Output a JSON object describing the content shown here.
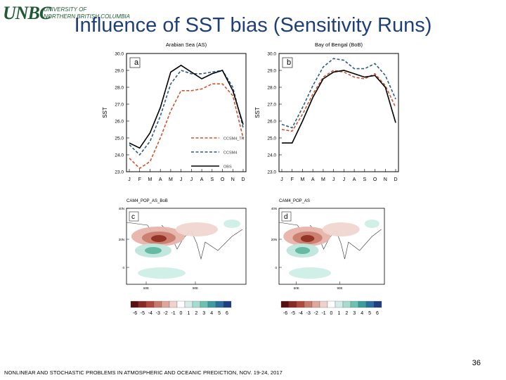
{
  "logo": {
    "mark": "UNBC",
    "line1": "UNIVERSITY OF",
    "line2": "NORTHERN BRITISH COLUMBIA"
  },
  "title": "Influence of SST bias (Sensitivity Runs)",
  "page_number": "36",
  "footer": "NONLINEAR AND STOCHASTIC PROBLEMS IN ATMOSPHERIC AND OCEANIC PREDICTION, NOV. 19-24, 2017",
  "chart_data": [
    {
      "type": "line",
      "panel": "a",
      "title": "Arabian Sea (AS)",
      "ylabel": "SST",
      "categories": [
        "J",
        "F",
        "M",
        "A",
        "M",
        "J",
        "J",
        "A",
        "S",
        "O",
        "N",
        "D"
      ],
      "yticks": [
        "23.0",
        "24.0",
        "25.0",
        "26.0",
        "27.0",
        "28.0",
        "29.0",
        "30.0"
      ],
      "ylim": [
        23,
        30
      ],
      "legend_position": "bottom-right",
      "series": [
        {
          "name": "CCSM4_TR",
          "color": "#d0532a",
          "dash": true,
          "values": [
            23.8,
            23.2,
            23.6,
            25.0,
            26.6,
            27.8,
            27.8,
            27.9,
            28.2,
            28.2,
            27.5,
            25.0
          ]
        },
        {
          "name": "CCSM4",
          "color": "#2c5a8c",
          "dash": true,
          "values": [
            24.6,
            24.0,
            24.8,
            26.3,
            28.2,
            29.0,
            28.8,
            28.8,
            28.9,
            29.0,
            28.0,
            25.6
          ]
        },
        {
          "name": "OBS",
          "color": "#000000",
          "dash": false,
          "values": [
            24.7,
            24.4,
            25.3,
            26.8,
            28.9,
            29.3,
            28.9,
            28.5,
            28.8,
            29.0,
            27.8,
            25.8
          ]
        }
      ]
    },
    {
      "type": "line",
      "panel": "b",
      "title": "Bay of Bengal (BoB)",
      "ylabel": "SST",
      "categories": [
        "J",
        "F",
        "M",
        "A",
        "M",
        "J",
        "J",
        "A",
        "S",
        "O",
        "N",
        "D"
      ],
      "yticks": [
        "23.0",
        "24.0",
        "25.0",
        "26.0",
        "27.0",
        "28.0",
        "29.0",
        "30.0"
      ],
      "ylim": [
        23,
        30
      ],
      "series": [
        {
          "name": "CCSM4_TR",
          "color": "#d0532a",
          "dash": true,
          "values": [
            25.5,
            25.4,
            26.4,
            27.6,
            28.6,
            29.0,
            28.9,
            28.6,
            28.5,
            28.8,
            28.1,
            26.8
          ]
        },
        {
          "name": "CCSM4",
          "color": "#2c5a8c",
          "dash": true,
          "values": [
            25.8,
            25.6,
            26.8,
            28.1,
            29.2,
            29.7,
            29.6,
            29.1,
            29.1,
            29.4,
            28.7,
            27.3
          ]
        },
        {
          "name": "OBS",
          "color": "#000000",
          "dash": false,
          "values": [
            24.7,
            24.7,
            26.0,
            27.4,
            28.5,
            28.9,
            29.0,
            28.8,
            28.6,
            28.7,
            28.0,
            25.9
          ]
        }
      ]
    },
    {
      "type": "heatmap",
      "panel": "c",
      "title": "CAM4_POP_AS_BoB",
      "lat_ticks": [
        "40N",
        "20N",
        "0"
      ],
      "lon_ticks": [
        "60E",
        "90E"
      ],
      "colorbar": {
        "labels": [
          "-6",
          "-5",
          "-4",
          "-3",
          "-2",
          "-1",
          "0",
          "1",
          "2",
          "3",
          "4",
          "5",
          "6"
        ]
      }
    },
    {
      "type": "heatmap",
      "panel": "d",
      "title": "CAM4_POP_AS",
      "lat_ticks": [
        "40N",
        "20N",
        "0"
      ],
      "lon_ticks": [
        "60E",
        "90E"
      ],
      "colorbar": {
        "labels": [
          "-6",
          "-5",
          "-4",
          "-3",
          "-2",
          "-1",
          "0",
          "1",
          "2",
          "3",
          "4",
          "5",
          "6"
        ]
      }
    }
  ],
  "colorbar_colors": [
    "#5a1010",
    "#8a2a22",
    "#b04a3e",
    "#c87a6c",
    "#dfa79c",
    "#f0d2cc",
    "#ffffff",
    "#d2ede8",
    "#a6dccf",
    "#6cc2b0",
    "#3c9da0",
    "#2a6fa0",
    "#1f3f80"
  ]
}
